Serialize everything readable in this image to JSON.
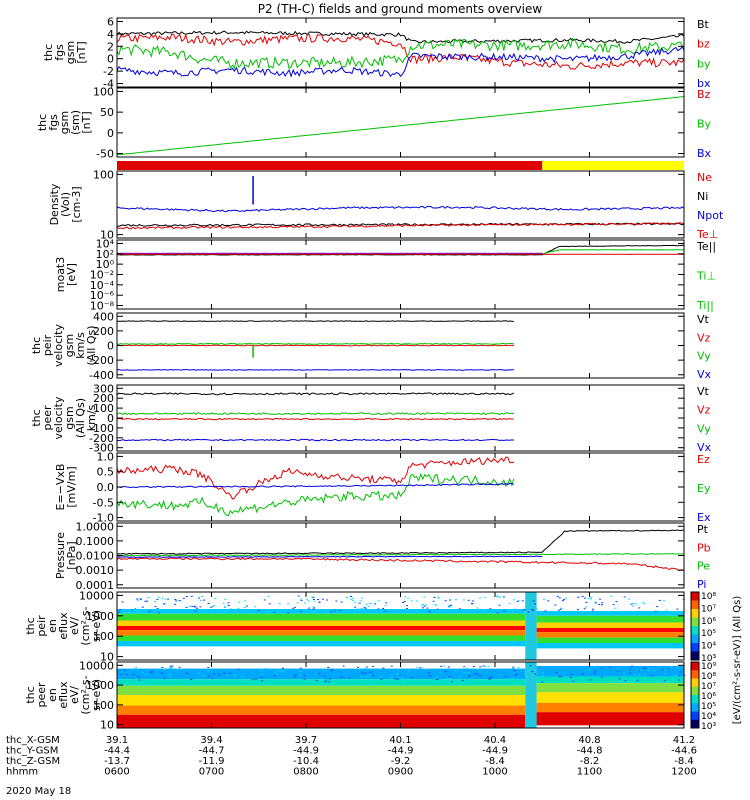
{
  "title": "P2 (TH-C) fields and ground moments overview",
  "date_label": "2020 May 18",
  "colors": {
    "black": "#000000",
    "red": "#e00000",
    "green": "#00c000",
    "blue": "#0000e0",
    "yellow": "#ffff00",
    "lime": "#30e030",
    "purple": "#a000c0"
  },
  "chart_data": [
    {
      "type": "line",
      "ylabel": [
        "thc",
        "fgs",
        "gsm",
        "[nT]"
      ],
      "yticks": [
        "6",
        "4",
        "2",
        "0",
        "-2",
        "-4"
      ],
      "ylim": [
        -4,
        6
      ],
      "legend": [
        {
          "name": "Bt",
          "color": "black"
        },
        {
          "name": "bz",
          "color": "red"
        },
        {
          "name": "by",
          "color": "green"
        },
        {
          "name": "bx",
          "color": "blue"
        }
      ],
      "series": [
        {
          "name": "Bt",
          "color": "black",
          "x": [
            0,
            0.1,
            0.2,
            0.3,
            0.4,
            0.5,
            0.52,
            0.6,
            0.7,
            0.8,
            0.9,
            1.0
          ],
          "y": [
            3.7,
            3.8,
            3.9,
            3.8,
            3.7,
            3.6,
            2.5,
            2.6,
            2.7,
            2.8,
            2.6,
            3.4
          ],
          "noise": 0.25
        },
        {
          "name": "bz",
          "color": "red",
          "x": [
            0,
            0.1,
            0.2,
            0.3,
            0.4,
            0.5,
            0.52,
            0.6,
            0.7,
            0.8,
            0.9,
            1.0
          ],
          "y": [
            3.0,
            3.2,
            2.5,
            3.0,
            3.1,
            2.4,
            0.0,
            0.3,
            -0.5,
            -1.0,
            -0.5,
            -0.5
          ],
          "noise": 0.6
        },
        {
          "name": "by",
          "color": "green",
          "x": [
            0,
            0.1,
            0.15,
            0.2,
            0.3,
            0.4,
            0.5,
            0.52,
            0.6,
            0.7,
            0.8,
            0.9,
            1.0
          ],
          "y": [
            1.5,
            1.0,
            0.0,
            -0.5,
            -0.5,
            -0.5,
            0.0,
            2.0,
            2.2,
            2.0,
            2.3,
            1.5,
            2.0
          ],
          "noise": 0.8
        },
        {
          "name": "bx",
          "color": "blue",
          "x": [
            0,
            0.1,
            0.2,
            0.3,
            0.4,
            0.5,
            0.52,
            0.6,
            0.7,
            0.8,
            0.9,
            1.0
          ],
          "y": [
            -1.5,
            -2.0,
            -1.5,
            -2.0,
            -1.5,
            -2.2,
            0.5,
            0.4,
            0.3,
            0.0,
            0.5,
            1.5
          ],
          "noise": 0.5
        }
      ]
    },
    {
      "type": "line",
      "ylabel": [
        "thc",
        "fgs",
        "gsm",
        "(sm)",
        "[nT]"
      ],
      "yticks": [
        "100",
        "50",
        "0",
        "-50"
      ],
      "ylim": [
        -60,
        100
      ],
      "legend": [
        {
          "name": "Bz",
          "color": "red"
        },
        {
          "name": "By",
          "color": "green"
        },
        {
          "name": "Bx",
          "color": "blue"
        }
      ],
      "series": [
        {
          "name": "By",
          "color": "green",
          "x": [
            0,
            1
          ],
          "y": [
            -55,
            80
          ],
          "noise": 0
        }
      ]
    },
    {
      "type": "bar",
      "ylabel": [],
      "yticks": [],
      "ylim": [
        0,
        1
      ],
      "mode_bar": [
        {
          "from": 0,
          "to": 0.75,
          "color": "red"
        },
        {
          "from": 0.75,
          "to": 1.0,
          "color": "yellow"
        }
      ]
    },
    {
      "type": "line",
      "ylabel": [
        "Density",
        "(Vol)",
        "[cm-3]"
      ],
      "yticks": [
        "100",
        "10"
      ],
      "ylim": [
        0.4,
        2.4
      ],
      "log": true,
      "legend": [
        {
          "name": "Ne",
          "color": "red"
        },
        {
          "name": "Ni",
          "color": "black"
        },
        {
          "name": "Npot",
          "color": "blue"
        },
        {
          "name": "Te⊥",
          "color": "red"
        }
      ],
      "series": [
        {
          "name": "Npot",
          "color": "blue",
          "x": [
            0,
            0.2,
            0.4,
            0.6,
            0.8,
            1.0
          ],
          "y": [
            1.3,
            1.2,
            1.3,
            1.32,
            1.25,
            1.3
          ],
          "noise": 0.03
        },
        {
          "name": "Ni",
          "color": "black",
          "x": [
            0,
            0.5,
            1.0
          ],
          "y": [
            0.78,
            0.8,
            0.82
          ],
          "noise": 0.03
        },
        {
          "name": "Ne",
          "color": "red",
          "x": [
            0,
            0.3,
            0.5,
            0.7,
            1.0
          ],
          "y": [
            0.7,
            0.73,
            0.77,
            0.8,
            0.83
          ],
          "noise": 0.03
        }
      ],
      "spike": {
        "x": 0.24,
        "y": 2.25,
        "color": "blue"
      }
    },
    {
      "type": "line",
      "ylabel": [
        "moat3",
        "[eV]"
      ],
      "yticks": [
        "10⁴",
        "10²",
        "10⁰",
        "10⁻²",
        "10⁻⁴",
        "10⁻⁶",
        "10⁻⁸"
      ],
      "ylim": [
        -9,
        5
      ],
      "log": true,
      "legend": [
        {
          "name": "Te||",
          "color": "black"
        },
        {
          "name": "Ti⊥",
          "color": "green"
        },
        {
          "name": "Ti||",
          "color": "green"
        }
      ],
      "series": [
        {
          "name": "Te||",
          "color": "black",
          "x": [
            0,
            0.75,
            0.78,
            1.0
          ],
          "y": [
            2.0,
            2.0,
            3.7,
            3.9
          ],
          "noise": 0.05
        },
        {
          "name": "Ti⊥",
          "color": "green",
          "x": [
            0,
            0.75,
            0.78,
            1.0
          ],
          "y": [
            2.2,
            2.2,
            3.0,
            3.0
          ],
          "noise": 0.02
        },
        {
          "name": "Te⊥",
          "color": "red",
          "x": [
            0,
            1.0
          ],
          "y": [
            2.1,
            2.1
          ],
          "noise": 0.02
        },
        {
          "name": "Ti||",
          "color": "purple",
          "x": [
            0,
            0.75
          ],
          "y": [
            2.3,
            2.3
          ],
          "noise": 0.02
        }
      ]
    },
    {
      "type": "line",
      "ylabel": [
        "thc",
        "peir",
        "velocity",
        "gsm",
        "km/s",
        "(All Qs)"
      ],
      "yticks": [
        "400",
        "200",
        "0",
        "-200",
        "-400"
      ],
      "ylim": [
        -400,
        400
      ],
      "legend": [
        {
          "name": "Vt",
          "color": "black"
        },
        {
          "name": "Vz",
          "color": "red"
        },
        {
          "name": "Vy",
          "color": "green"
        },
        {
          "name": "Vx",
          "color": "blue"
        }
      ],
      "series": [
        {
          "name": "Vt",
          "color": "black",
          "x": [
            0.0,
            0.3,
            0.7
          ],
          "y": [
            300,
            300,
            300
          ],
          "noise": 4
        },
        {
          "name": "Vy",
          "color": "green",
          "x": [
            0,
            0.7
          ],
          "y": [
            20,
            20
          ],
          "noise": 5
        },
        {
          "name": "Vz",
          "color": "red",
          "x": [
            0,
            0.7
          ],
          "y": [
            0,
            0
          ],
          "noise": 5
        },
        {
          "name": "Vx",
          "color": "blue",
          "x": [
            0,
            0.7
          ],
          "y": [
            -300,
            -300
          ],
          "noise": 4
        }
      ],
      "xmax": 0.7,
      "spike": {
        "x": 0.24,
        "y": -150,
        "color": "green"
      }
    },
    {
      "type": "line",
      "ylabel": [
        "thc",
        "peer",
        "velocity",
        "gsm",
        "(All Qs)",
        "km/s"
      ],
      "yticks": [
        "300",
        "200",
        "100",
        "0",
        "-100",
        "-200",
        "-300"
      ],
      "ylim": [
        -300,
        300
      ],
      "legend": [
        {
          "name": "Vt",
          "color": "black"
        },
        {
          "name": "Vz",
          "color": "red"
        },
        {
          "name": "Vy",
          "color": "green"
        },
        {
          "name": "Vx",
          "color": "blue"
        }
      ],
      "series": [
        {
          "name": "Vt",
          "color": "black",
          "x": [
            0,
            0.7
          ],
          "y": [
            220,
            220
          ],
          "noise": 8
        },
        {
          "name": "Vy",
          "color": "green",
          "x": [
            0,
            0.7
          ],
          "y": [
            40,
            40
          ],
          "noise": 8
        },
        {
          "name": "Vz",
          "color": "red",
          "x": [
            0,
            0.7
          ],
          "y": [
            -10,
            -10
          ],
          "noise": 6
        },
        {
          "name": "Vx",
          "color": "blue",
          "x": [
            0,
            0.7
          ],
          "y": [
            -200,
            -200
          ],
          "noise": 6
        }
      ],
      "xmax": 0.7
    },
    {
      "type": "line",
      "ylabel": [
        "E=−VxB",
        "[mV/m]"
      ],
      "yticks": [
        "1.0",
        "0.5",
        "0.0",
        "-0.5",
        "-1.0"
      ],
      "ylim": [
        -1.1,
        1.1
      ],
      "legend": [
        {
          "name": "Ez",
          "color": "red"
        },
        {
          "name": "Ey",
          "color": "green"
        },
        {
          "name": "Ex",
          "color": "blue"
        }
      ],
      "series": [
        {
          "name": "Ez",
          "color": "red",
          "x": [
            0,
            0.1,
            0.15,
            0.2,
            0.3,
            0.4,
            0.5,
            0.52,
            0.6,
            0.7
          ],
          "y": [
            0.5,
            0.6,
            0.4,
            -0.3,
            0.5,
            0.3,
            0.2,
            0.7,
            0.8,
            0.9
          ],
          "noise": 0.12
        },
        {
          "name": "Ey",
          "color": "green",
          "x": [
            0,
            0.1,
            0.15,
            0.2,
            0.3,
            0.4,
            0.5,
            0.52,
            0.6,
            0.7
          ],
          "y": [
            -0.5,
            -0.6,
            -0.5,
            -0.8,
            -0.5,
            -0.3,
            -0.3,
            0.3,
            0.25,
            0.15
          ],
          "noise": 0.15
        },
        {
          "name": "Ex",
          "color": "blue",
          "x": [
            0,
            0.3,
            0.5,
            0.7
          ],
          "y": [
            0.0,
            0.02,
            0.05,
            0.1
          ],
          "noise": 0.02
        }
      ],
      "xmax": 0.7
    },
    {
      "type": "line",
      "ylabel": [
        "Pressure",
        "[nPa]"
      ],
      "yticks": [
        "1.0000",
        "0.1000",
        "0.0100",
        "0.0010",
        "0.0001"
      ],
      "ylim": [
        -4,
        0
      ],
      "log": true,
      "legend": [
        {
          "name": "Pt",
          "color": "black"
        },
        {
          "name": "Pb",
          "color": "red"
        },
        {
          "name": "Pe",
          "color": "green"
        },
        {
          "name": "Pi",
          "color": "blue"
        }
      ],
      "series": [
        {
          "name": "Pt",
          "color": "black",
          "x": [
            0,
            0.5,
            0.75,
            0.79,
            1.0
          ],
          "y": [
            -1.9,
            -1.85,
            -1.8,
            -0.5,
            -0.45
          ],
          "noise": 0.03
        },
        {
          "name": "Pe",
          "color": "green",
          "x": [
            0,
            0.5,
            1.0
          ],
          "y": [
            -2.0,
            -1.95,
            -1.9
          ],
          "noise": 0.02
        },
        {
          "name": "Pb",
          "color": "red",
          "x": [
            0,
            0.3,
            0.5,
            0.7,
            0.9,
            1.0
          ],
          "y": [
            -2.2,
            -2.2,
            -2.3,
            -2.4,
            -2.5,
            -2.9
          ],
          "noise": 0.06
        },
        {
          "name": "Pi",
          "color": "blue",
          "x": [
            0,
            0.75
          ],
          "y": [
            -2.1,
            -2.05
          ],
          "noise": 0.02
        }
      ]
    },
    {
      "type": "heatmap",
      "ylabel": [
        "thc",
        "peir",
        "en",
        "eflux",
        "eV/",
        "(cm²-s-",
        "sr-eV)"
      ],
      "yticks": [
        "10000",
        "1000",
        "100",
        "10"
      ],
      "ylim": [
        0.8,
        4.3
      ],
      "log": true
    },
    {
      "type": "heatmap",
      "ylabel": [
        "thc",
        "peer",
        "en",
        "eflux",
        "eV/",
        "(cm²-s-",
        "sr-eV)"
      ],
      "yticks": [
        "10000",
        "1000",
        "100",
        "10"
      ],
      "ylim": [
        0.8,
        4.3
      ],
      "log": true
    }
  ],
  "colorbar": {
    "label": "[eV/(cm²-s-sr-eV)] (All Qs)",
    "upper_ticks": [
      "10⁸",
      "10⁷",
      "10⁶",
      "10⁵",
      "10⁴",
      "10³"
    ],
    "lower_ticks": [
      "10⁹",
      "10⁸",
      "10⁷",
      "10⁶",
      "10⁵",
      "10⁴",
      "10³"
    ]
  },
  "xaxis": {
    "rows": [
      {
        "label": "thc_X-GSM",
        "values": [
          "39.1",
          "39.4",
          "39.7",
          "40.1",
          "40.4",
          "40.8",
          "41.2"
        ]
      },
      {
        "label": "thc_Y-GSM",
        "values": [
          "-44.4",
          "-44.7",
          "-44.9",
          "-44.9",
          "-44.9",
          "-44.8",
          "-44.6"
        ]
      },
      {
        "label": "thc_Z-GSM",
        "values": [
          "-13.7",
          "-11.9",
          "-10.4",
          "-9.2",
          "-8.4",
          "-8.2",
          "-8.4"
        ]
      },
      {
        "label": "hhmm",
        "values": [
          "0600",
          "0700",
          "0800",
          "0900",
          "1000",
          "1100",
          "1200"
        ]
      }
    ]
  }
}
